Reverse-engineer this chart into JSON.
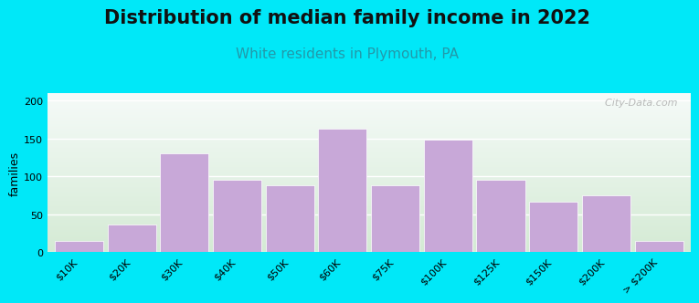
{
  "title": "Distribution of median family income in 2022",
  "subtitle": "White residents in Plymouth, PA",
  "categories": [
    "$10K",
    "$20K",
    "$30K",
    "$40K",
    "$50K",
    "$60K",
    "$75K",
    "$100K",
    "$125K",
    "$150K",
    "$200K",
    "> $200K"
  ],
  "values": [
    15,
    36,
    130,
    95,
    88,
    163,
    88,
    148,
    95,
    67,
    75,
    15
  ],
  "bar_color": "#c8a8d8",
  "bar_edge_color": "#ffffff",
  "background_outer": "#00e8f8",
  "bg_top": "#f5faf8",
  "bg_bottom": "#d4ead4",
  "ylabel": "families",
  "ylim": [
    0,
    210
  ],
  "yticks": [
    0,
    50,
    100,
    150,
    200
  ],
  "title_fontsize": 15,
  "subtitle_fontsize": 11,
  "subtitle_color": "#2299aa",
  "ylabel_fontsize": 9,
  "tick_fontsize": 8,
  "watermark": "  City-Data.com"
}
